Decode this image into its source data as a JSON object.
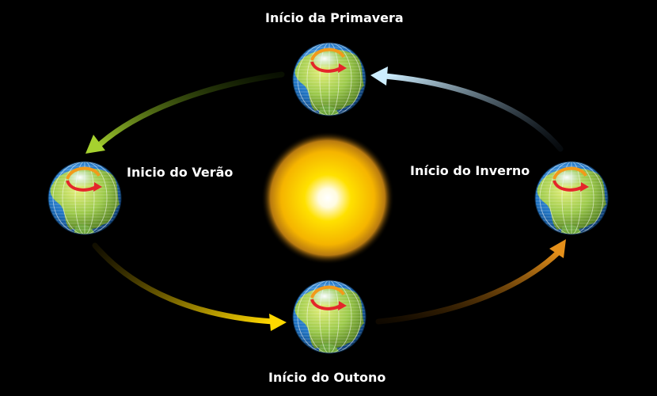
{
  "diagram": {
    "labels": {
      "spring": "Início da Primavera",
      "summer": "Inicio do Verão",
      "autumn": "Início do Outono",
      "winter": "Início do Inverno"
    },
    "colors": {
      "background": "#000000",
      "sun_core": "#ffffff",
      "sun_mid": "#ffe000",
      "sun_outer": "#f2a300",
      "ocean": "#1f73c2",
      "land": "#9bc94a",
      "arrow_spring_to_summer": "#8fbf2a",
      "arrow_summer_to_autumn": "#f5c800",
      "arrow_autumn_to_winter": "#d8860a",
      "arrow_winter_to_spring": "#bfe3f7",
      "rotation_arrow": "#e4262a"
    },
    "icons": {
      "sun": "sun-icon",
      "earth": "earth-globe-icon",
      "rotation": "rotation-arrow-icon"
    }
  }
}
